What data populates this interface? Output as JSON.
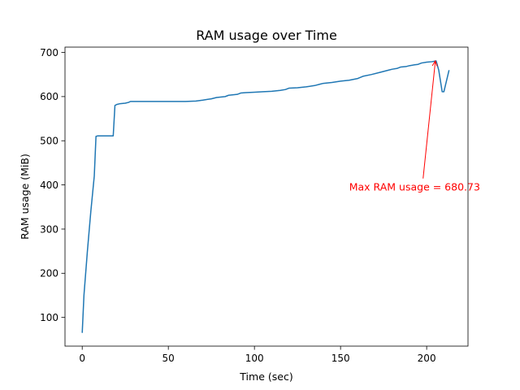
{
  "chart_data": {
    "type": "line",
    "title": "RAM usage over Time",
    "xlabel": "Time (sec)",
    "ylabel": "RAM usage (MiB)",
    "xlim": [
      -10,
      224
    ],
    "ylim": [
      35,
      712
    ],
    "xticks": [
      0,
      50,
      100,
      150,
      200
    ],
    "yticks": [
      100,
      200,
      300,
      400,
      500,
      600,
      700
    ],
    "xtick_labels": [
      "0",
      "50",
      "100",
      "150",
      "200"
    ],
    "ytick_labels": [
      "100",
      "200",
      "300",
      "400",
      "500",
      "600",
      "700"
    ],
    "grid": false,
    "line_color": "#1f77b4",
    "annotation_color": "#ff0000",
    "series": [
      {
        "x": [
          0,
          1,
          3,
          5,
          7,
          8,
          9,
          10,
          12,
          14,
          16,
          18,
          19,
          20,
          22,
          25,
          27,
          28,
          30,
          35,
          40,
          50,
          60,
          66,
          70,
          75,
          78,
          83,
          85,
          90,
          92,
          95,
          100,
          105,
          110,
          115,
          118,
          120,
          125,
          130,
          135,
          138,
          140,
          145,
          150,
          155,
          160,
          163,
          168,
          173,
          178,
          180,
          183,
          185,
          188,
          190,
          193,
          195,
          197,
          200,
          203,
          205.5,
          207,
          209,
          210,
          213
        ],
        "y": [
          65,
          150,
          250,
          340,
          420,
          510,
          511,
          511,
          511,
          511,
          511,
          511,
          580,
          582,
          584,
          585,
          587,
          589,
          589,
          589,
          589,
          589,
          589,
          590,
          592,
          595,
          598,
          600,
          603,
          605,
          608,
          609,
          610,
          611,
          612,
          614,
          616,
          619,
          620,
          622,
          625,
          628,
          630,
          632,
          635,
          637,
          641,
          646,
          650,
          655,
          660,
          662,
          664,
          667,
          668,
          670,
          672,
          673,
          676,
          678,
          679,
          680.73,
          660,
          611,
          611,
          660
        ]
      }
    ],
    "annotation": {
      "text": "Max RAM usage = 680.73",
      "xy": [
        205,
        680.73
      ],
      "xytext": [
        155,
        387
      ]
    }
  }
}
